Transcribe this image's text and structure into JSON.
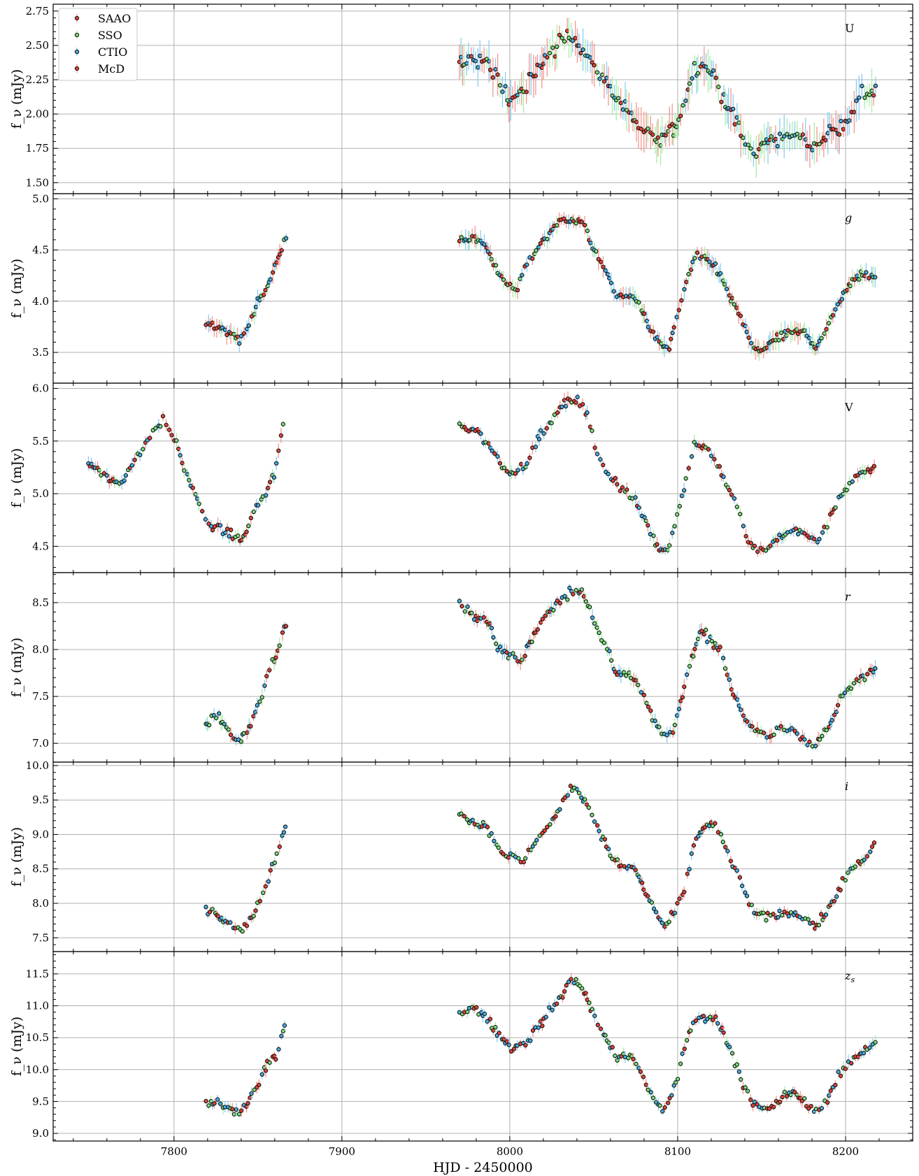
{
  "chart_data": {
    "type": "scatter",
    "xlabel": "HJD - 2450000",
    "xlim": [
      7728,
      8240
    ],
    "xticks": [
      7800,
      7900,
      8000,
      8100,
      8200
    ],
    "ylabel": "f_ν (mJy)",
    "grid": true,
    "legend": {
      "placement": "top-left",
      "panel": "U"
    },
    "series_styles": [
      {
        "name": "SAAO",
        "color": "#e8433a",
        "errcolor": "#f4978f"
      },
      {
        "name": "SSO",
        "color": "#7be07b",
        "errcolor": "#a9eea9"
      },
      {
        "name": "CTIO",
        "color": "#46b0e8",
        "errcolor": "#8ccdf0"
      },
      {
        "name": "McD",
        "color": "#e8433a",
        "errcolor": "#f4978f"
      }
    ],
    "panels": [
      {
        "band": "U",
        "italic": false,
        "ylim": [
          1.42,
          2.8
        ],
        "yticks": [
          1.5,
          1.75,
          2.0,
          2.25,
          2.5,
          2.75
        ],
        "ytick_labels": [
          "1.50",
          "1.75",
          "2.00",
          "2.25",
          "2.50",
          "2.75"
        ],
        "curve": [
          [
            7970,
            2.35
          ],
          [
            7978,
            2.4
          ],
          [
            7985,
            2.38
          ],
          [
            7992,
            2.28
          ],
          [
            8000,
            2.1
          ],
          [
            8008,
            2.18
          ],
          [
            8015,
            2.3
          ],
          [
            8022,
            2.42
          ],
          [
            8030,
            2.52
          ],
          [
            8038,
            2.6
          ],
          [
            8043,
            2.48
          ],
          [
            8050,
            2.35
          ],
          [
            8058,
            2.22
          ],
          [
            8065,
            2.1
          ],
          [
            8072,
            1.98
          ],
          [
            8080,
            1.88
          ],
          [
            8090,
            1.8
          ],
          [
            8098,
            1.9
          ],
          [
            8103,
            2.05
          ],
          [
            8108,
            2.28
          ],
          [
            8113,
            2.38
          ],
          [
            8120,
            2.3
          ],
          [
            8126,
            2.15
          ],
          [
            8132,
            2.0
          ],
          [
            8138,
            1.85
          ],
          [
            8145,
            1.72
          ],
          [
            8152,
            1.78
          ],
          [
            8160,
            1.82
          ],
          [
            8170,
            1.85
          ],
          [
            8180,
            1.8
          ],
          [
            8190,
            1.85
          ],
          [
            8200,
            1.95
          ],
          [
            8210,
            2.15
          ],
          [
            8218,
            2.18
          ]
        ],
        "scatter": 0.06,
        "err": 0.09,
        "step": 1.25
      },
      {
        "band": "g",
        "italic": true,
        "ylim": [
          3.2,
          5.05
        ],
        "yticks": [
          3.5,
          4.0,
          4.5,
          5.0
        ],
        "ytick_labels": [
          "3.5",
          "4.0",
          "4.5",
          "5.0"
        ],
        "curve": [
          [
            7819,
            3.78
          ],
          [
            7825,
            3.74
          ],
          [
            7832,
            3.7
          ],
          [
            7838,
            3.62
          ],
          [
            7843,
            3.72
          ],
          [
            7850,
            4.0
          ],
          [
            7856,
            4.15
          ],
          [
            7862,
            4.4
          ],
          [
            7868,
            4.7
          ],
          [
            7970,
            4.6
          ],
          [
            7978,
            4.62
          ],
          [
            7985,
            4.55
          ],
          [
            7993,
            4.3
          ],
          [
            7998,
            4.15
          ],
          [
            8004,
            4.12
          ],
          [
            8010,
            4.35
          ],
          [
            8018,
            4.55
          ],
          [
            8025,
            4.7
          ],
          [
            8032,
            4.8
          ],
          [
            8038,
            4.8
          ],
          [
            8044,
            4.75
          ],
          [
            8050,
            4.5
          ],
          [
            8058,
            4.25
          ],
          [
            8064,
            4.05
          ],
          [
            8072,
            4.05
          ],
          [
            8078,
            3.95
          ],
          [
            8084,
            3.72
          ],
          [
            8090,
            3.55
          ],
          [
            8095,
            3.55
          ],
          [
            8100,
            3.85
          ],
          [
            8105,
            4.2
          ],
          [
            8111,
            4.45
          ],
          [
            8116,
            4.4
          ],
          [
            8122,
            4.35
          ],
          [
            8128,
            4.15
          ],
          [
            8134,
            3.95
          ],
          [
            8140,
            3.75
          ],
          [
            8145,
            3.55
          ],
          [
            8150,
            3.5
          ],
          [
            8155,
            3.6
          ],
          [
            8162,
            3.65
          ],
          [
            8170,
            3.7
          ],
          [
            8176,
            3.7
          ],
          [
            8182,
            3.55
          ],
          [
            8188,
            3.7
          ],
          [
            8194,
            3.92
          ],
          [
            8200,
            4.1
          ],
          [
            8208,
            4.25
          ],
          [
            8218,
            4.25
          ]
        ],
        "scatter": 0.04,
        "err": 0.06,
        "step": 1.25
      },
      {
        "band": "V",
        "italic": false,
        "ylim": [
          4.25,
          6.05
        ],
        "yticks": [
          4.5,
          5.0,
          5.5,
          6.0
        ],
        "ytick_labels": [
          "4.5",
          "5.0",
          "5.5",
          "6.0"
        ],
        "curve": [
          [
            7749,
            5.3
          ],
          [
            7760,
            5.15
          ],
          [
            7768,
            5.1
          ],
          [
            7778,
            5.35
          ],
          [
            7788,
            5.6
          ],
          [
            7794,
            5.7
          ],
          [
            7800,
            5.55
          ],
          [
            7806,
            5.25
          ],
          [
            7812,
            5.0
          ],
          [
            7820,
            4.72
          ],
          [
            7828,
            4.65
          ],
          [
            7836,
            4.6
          ],
          [
            7841,
            4.55
          ],
          [
            7848,
            4.85
          ],
          [
            7855,
            5.0
          ],
          [
            7860,
            5.2
          ],
          [
            7866,
            5.75
          ],
          [
            7970,
            5.65
          ],
          [
            7980,
            5.6
          ],
          [
            7988,
            5.45
          ],
          [
            7996,
            5.25
          ],
          [
            8003,
            5.2
          ],
          [
            8010,
            5.3
          ],
          [
            8018,
            5.55
          ],
          [
            8025,
            5.7
          ],
          [
            8032,
            5.85
          ],
          [
            8040,
            5.9
          ],
          [
            8046,
            5.75
          ],
          [
            8052,
            5.4
          ],
          [
            8058,
            5.2
          ],
          [
            8066,
            5.05
          ],
          [
            8074,
            4.95
          ],
          [
            8082,
            4.7
          ],
          [
            8088,
            4.5
          ],
          [
            8093,
            4.45
          ],
          [
            8099,
            4.75
          ],
          [
            8104,
            5.05
          ],
          [
            8110,
            5.5
          ],
          [
            8116,
            5.45
          ],
          [
            8122,
            5.35
          ],
          [
            8130,
            5.05
          ],
          [
            8136,
            4.85
          ],
          [
            8142,
            4.55
          ],
          [
            8148,
            4.45
          ],
          [
            8155,
            4.5
          ],
          [
            8162,
            4.6
          ],
          [
            8170,
            4.65
          ],
          [
            8177,
            4.6
          ],
          [
            8184,
            4.55
          ],
          [
            8190,
            4.75
          ],
          [
            8196,
            4.95
          ],
          [
            8205,
            5.15
          ],
          [
            8218,
            5.25
          ]
        ],
        "scatter": 0.04,
        "err": 0.04,
        "step": 1.4
      },
      {
        "band": "r",
        "italic": true,
        "ylim": [
          6.8,
          8.82
        ],
        "yticks": [
          7.0,
          7.5,
          8.0,
          8.5
        ],
        "ytick_labels": [
          "7.0",
          "7.5",
          "8.0",
          "8.5"
        ],
        "curve": [
          [
            7819,
            7.2
          ],
          [
            7826,
            7.3
          ],
          [
            7832,
            7.15
          ],
          [
            7838,
            7.0
          ],
          [
            7843,
            7.1
          ],
          [
            7850,
            7.4
          ],
          [
            7856,
            7.75
          ],
          [
            7862,
            8.0
          ],
          [
            7868,
            8.35
          ],
          [
            7970,
            8.5
          ],
          [
            7978,
            8.35
          ],
          [
            7986,
            8.3
          ],
          [
            7994,
            8.0
          ],
          [
            8000,
            7.95
          ],
          [
            8006,
            7.85
          ],
          [
            8013,
            8.1
          ],
          [
            8020,
            8.35
          ],
          [
            8028,
            8.5
          ],
          [
            8035,
            8.6
          ],
          [
            8042,
            8.65
          ],
          [
            8050,
            8.3
          ],
          [
            8057,
            8.05
          ],
          [
            8064,
            7.75
          ],
          [
            8072,
            7.7
          ],
          [
            8078,
            7.6
          ],
          [
            8084,
            7.3
          ],
          [
            8090,
            7.1
          ],
          [
            8096,
            7.05
          ],
          [
            8102,
            7.45
          ],
          [
            8108,
            7.9
          ],
          [
            8114,
            8.2
          ],
          [
            8120,
            8.1
          ],
          [
            8126,
            7.95
          ],
          [
            8132,
            7.6
          ],
          [
            8138,
            7.35
          ],
          [
            8145,
            7.15
          ],
          [
            8152,
            7.05
          ],
          [
            8160,
            7.15
          ],
          [
            8168,
            7.15
          ],
          [
            8176,
            7.05
          ],
          [
            8182,
            7.0
          ],
          [
            8190,
            7.15
          ],
          [
            8198,
            7.5
          ],
          [
            8206,
            7.65
          ],
          [
            8218,
            7.8
          ]
        ],
        "scatter": 0.05,
        "err": 0.05,
        "step": 1.35
      },
      {
        "band": "i",
        "italic": true,
        "ylim": [
          7.3,
          10.05
        ],
        "yticks": [
          7.5,
          8.0,
          8.5,
          9.0,
          9.5,
          10.0
        ],
        "ytick_labels": [
          "7.5",
          "8.0",
          "8.5",
          "9.0",
          "9.5",
          "10.0"
        ],
        "curve": [
          [
            7819,
            7.92
          ],
          [
            7826,
            7.85
          ],
          [
            7832,
            7.75
          ],
          [
            7838,
            7.62
          ],
          [
            7844,
            7.7
          ],
          [
            7850,
            8.0
          ],
          [
            7856,
            8.35
          ],
          [
            7862,
            8.75
          ],
          [
            7867,
            9.2
          ],
          [
            7970,
            9.3
          ],
          [
            7978,
            9.2
          ],
          [
            7986,
            9.1
          ],
          [
            7994,
            8.8
          ],
          [
            8002,
            8.65
          ],
          [
            8008,
            8.6
          ],
          [
            8015,
            8.9
          ],
          [
            8022,
            9.1
          ],
          [
            8030,
            9.35
          ],
          [
            8036,
            9.7
          ],
          [
            8042,
            9.6
          ],
          [
            8048,
            9.35
          ],
          [
            8054,
            9.0
          ],
          [
            8060,
            8.7
          ],
          [
            8066,
            8.55
          ],
          [
            8074,
            8.5
          ],
          [
            8080,
            8.2
          ],
          [
            8086,
            7.9
          ],
          [
            8092,
            7.65
          ],
          [
            8098,
            7.85
          ],
          [
            8104,
            8.2
          ],
          [
            8110,
            8.9
          ],
          [
            8116,
            9.1
          ],
          [
            8122,
            9.15
          ],
          [
            8128,
            8.85
          ],
          [
            8134,
            8.5
          ],
          [
            8140,
            8.15
          ],
          [
            8146,
            7.85
          ],
          [
            8154,
            7.8
          ],
          [
            8162,
            7.85
          ],
          [
            8170,
            7.85
          ],
          [
            8176,
            7.8
          ],
          [
            8182,
            7.65
          ],
          [
            8190,
            7.9
          ],
          [
            8198,
            8.3
          ],
          [
            8206,
            8.55
          ],
          [
            8212,
            8.65
          ],
          [
            8218,
            8.9
          ]
        ],
        "scatter": 0.06,
        "err": 0.05,
        "step": 1.35
      },
      {
        "band": "z_s",
        "italic": true,
        "ylim": [
          8.88,
          11.85
        ],
        "yticks": [
          9.0,
          9.5,
          10.0,
          10.5,
          11.0,
          11.5
        ],
        "ytick_labels": [
          "9.0",
          "9.5",
          "10.0",
          "10.5",
          "11.0",
          "11.5"
        ],
        "curve": [
          [
            7819,
            9.45
          ],
          [
            7826,
            9.5
          ],
          [
            7832,
            9.4
          ],
          [
            7838,
            9.3
          ],
          [
            7844,
            9.5
          ],
          [
            7850,
            9.75
          ],
          [
            7856,
            10.1
          ],
          [
            7862,
            10.3
          ],
          [
            7866,
            10.7
          ],
          [
            7970,
            10.9
          ],
          [
            7978,
            10.95
          ],
          [
            7985,
            10.85
          ],
          [
            7992,
            10.6
          ],
          [
            8000,
            10.35
          ],
          [
            8008,
            10.4
          ],
          [
            8015,
            10.6
          ],
          [
            8022,
            10.85
          ],
          [
            8030,
            11.1
          ],
          [
            8036,
            11.4
          ],
          [
            8042,
            11.35
          ],
          [
            8050,
            10.85
          ],
          [
            8058,
            10.45
          ],
          [
            8064,
            10.15
          ],
          [
            8072,
            10.25
          ],
          [
            8080,
            9.85
          ],
          [
            8086,
            9.5
          ],
          [
            8092,
            9.35
          ],
          [
            8098,
            9.7
          ],
          [
            8104,
            10.3
          ],
          [
            8110,
            10.8
          ],
          [
            8116,
            10.8
          ],
          [
            8122,
            10.85
          ],
          [
            8128,
            10.55
          ],
          [
            8134,
            10.15
          ],
          [
            8140,
            9.7
          ],
          [
            8145,
            9.45
          ],
          [
            8152,
            9.35
          ],
          [
            8160,
            9.5
          ],
          [
            8168,
            9.65
          ],
          [
            8176,
            9.5
          ],
          [
            8182,
            9.35
          ],
          [
            8190,
            9.55
          ],
          [
            8198,
            10.0
          ],
          [
            8206,
            10.2
          ],
          [
            8218,
            10.45
          ]
        ],
        "scatter": 0.07,
        "err": 0.06,
        "step": 1.35
      }
    ]
  }
}
